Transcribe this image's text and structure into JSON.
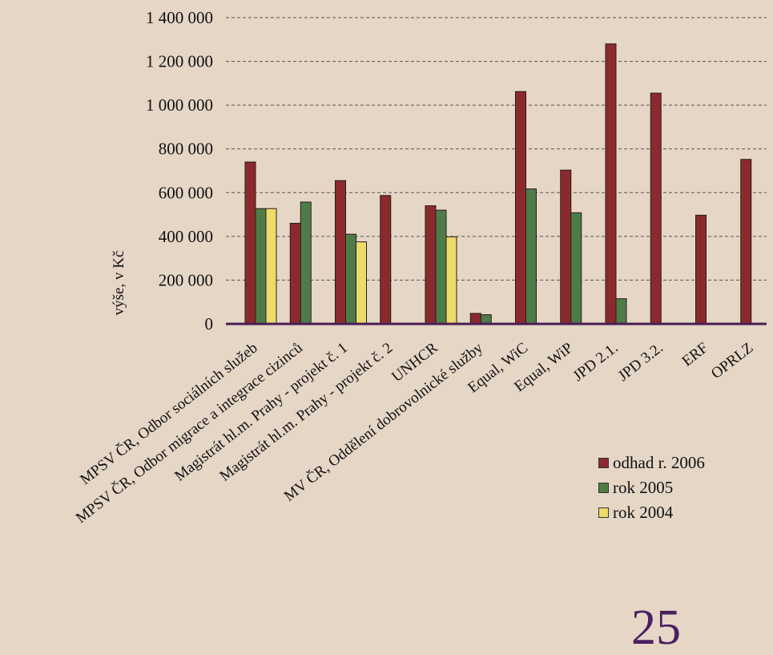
{
  "chart_data": {
    "type": "bar",
    "title": "",
    "xlabel": "",
    "ylabel": "výše, v Kč",
    "ylim": [
      0,
      1400000
    ],
    "yticks": [
      0,
      200000,
      400000,
      600000,
      800000,
      1000000,
      1200000,
      1400000
    ],
    "ytick_labels": [
      "0",
      "200 000",
      "400 000",
      "600 000",
      "800 000",
      "1 000 000",
      "1 200 000",
      "1 400 000"
    ],
    "grid": "horizontal dashed",
    "legend_position": "bottom-right",
    "categories": [
      "MPSV ČR, Odbor sociálních služeb",
      "MPSV ČR, Odbor migrace a integrace cizinců",
      "Magistrát hl.m. Prahy - projekt č. 1",
      "Magistrát hl.m. Prahy - projekt č. 2",
      "UNHCR",
      "MV ČR, Oddělení dobrovolnické služby",
      "Equal, WiC",
      "Equal, WiP",
      "JPD 2.1.",
      "JPD 3.2.",
      "ERF",
      "OPRLZ"
    ],
    "series": [
      {
        "name": "odhad r. 2006",
        "color": "#8b2a2e",
        "values": [
          740000,
          460000,
          655000,
          587000,
          540000,
          48000,
          1062000,
          703000,
          1280000,
          1055000,
          497000,
          752000
        ]
      },
      {
        "name": "rok 2005",
        "color": "#4e7c48",
        "values": [
          527000,
          557000,
          410000,
          0,
          520000,
          42000,
          617000,
          508000,
          115000,
          0,
          0,
          0
        ]
      },
      {
        "name": "rok 2004",
        "color": "#ecdc6a",
        "values": [
          527000,
          0,
          375000,
          0,
          398000,
          0,
          0,
          0,
          0,
          0,
          0,
          0
        ]
      }
    ]
  },
  "page_number": "25"
}
